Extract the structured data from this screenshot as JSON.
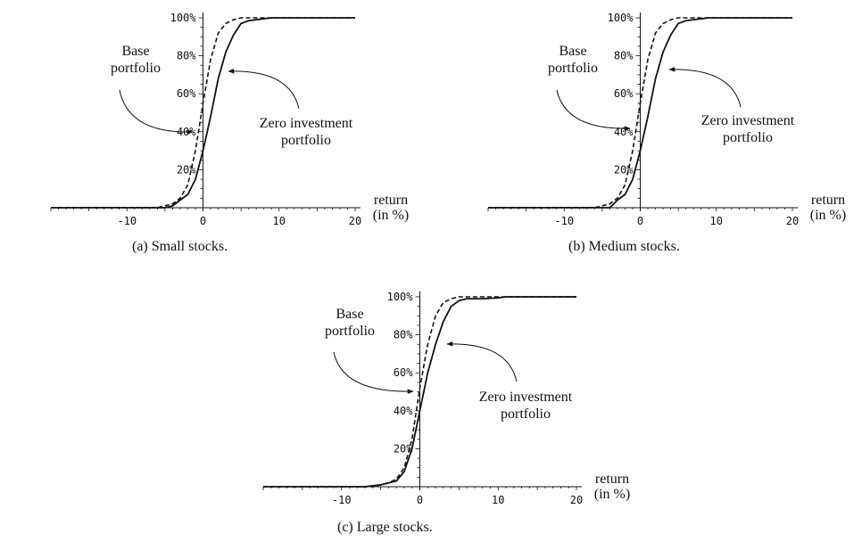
{
  "chart_data": [
    {
      "type": "line",
      "caption": "(a) Small stocks.",
      "xlabel": [
        "return",
        "(in %)"
      ],
      "ylabel": "",
      "xlim": [
        -20,
        20
      ],
      "ylim": [
        0,
        1
      ],
      "x_ticks": [
        -10,
        0,
        10,
        20
      ],
      "x_tick_labels": [
        "-10",
        "0",
        "10",
        "20"
      ],
      "y_ticks": [
        0.2,
        0.4,
        0.6,
        0.8,
        1.0
      ],
      "y_tick_labels": [
        "20%",
        "40%",
        "60%",
        "80%",
        "100%"
      ],
      "grid": false,
      "annotations": [
        {
          "text": [
            "Base",
            "portfolio"
          ],
          "series": "Base portfolio"
        },
        {
          "text": [
            "Zero investment",
            "portfolio"
          ],
          "series": "Zero investment portfolio"
        }
      ],
      "series": [
        {
          "name": "Base portfolio",
          "style": "dashed",
          "x": [
            -20,
            -6,
            -5,
            -4,
            -3,
            -2,
            -1,
            0,
            1,
            2,
            3,
            4,
            5,
            6,
            8,
            10,
            20
          ],
          "y": [
            0,
            0,
            0.01,
            0.02,
            0.05,
            0.12,
            0.3,
            0.55,
            0.78,
            0.92,
            0.97,
            0.99,
            1.0,
            1.0,
            1.0,
            1.0,
            1.0
          ]
        },
        {
          "name": "Zero investment portfolio",
          "style": "solid",
          "x": [
            -20,
            -5,
            -4,
            -3,
            -2,
            -1,
            0,
            1,
            2,
            3,
            4,
            5,
            6,
            7,
            8,
            9,
            10,
            20
          ],
          "y": [
            0,
            0,
            0.01,
            0.04,
            0.07,
            0.15,
            0.3,
            0.48,
            0.68,
            0.82,
            0.91,
            0.97,
            0.985,
            0.99,
            0.995,
            1.0,
            1.0,
            1.0
          ]
        }
      ]
    },
    {
      "type": "line",
      "caption": "(b) Medium stocks.",
      "xlabel": [
        "return",
        "(in %)"
      ],
      "ylabel": "",
      "xlim": [
        -20,
        20
      ],
      "ylim": [
        0,
        1
      ],
      "x_ticks": [
        -10,
        0,
        10,
        20
      ],
      "x_tick_labels": [
        "-10",
        "0",
        "10",
        "20"
      ],
      "y_ticks": [
        0.2,
        0.4,
        0.6,
        0.8,
        1.0
      ],
      "y_tick_labels": [
        "20%",
        "40%",
        "60%",
        "80%",
        "100%"
      ],
      "grid": false,
      "annotations": [
        {
          "text": [
            "Base",
            "portfolio"
          ],
          "series": "Base portfolio"
        },
        {
          "text": [
            "Zero investment",
            "portfolio"
          ],
          "series": "Zero investment portfolio"
        }
      ],
      "series": [
        {
          "name": "Base portfolio",
          "style": "dashed",
          "x": [
            -20,
            -6,
            -5,
            -4,
            -3,
            -2,
            -1,
            0,
            1,
            2,
            3,
            4,
            5,
            6,
            8,
            10,
            20
          ],
          "y": [
            0,
            0,
            0.01,
            0.02,
            0.05,
            0.12,
            0.3,
            0.55,
            0.78,
            0.92,
            0.97,
            0.99,
            1.0,
            1.0,
            1.0,
            1.0,
            1.0
          ]
        },
        {
          "name": "Zero investment portfolio",
          "style": "solid",
          "x": [
            -20,
            -4,
            -3,
            -2,
            -1,
            0,
            1,
            2,
            3,
            4,
            5,
            6,
            7,
            8,
            9,
            10,
            20
          ],
          "y": [
            0,
            0,
            0.04,
            0.07,
            0.15,
            0.3,
            0.48,
            0.68,
            0.82,
            0.91,
            0.97,
            0.985,
            0.99,
            0.995,
            1.0,
            1.0,
            1.0
          ]
        }
      ]
    },
    {
      "type": "line",
      "caption": "(c) Large stocks.",
      "xlabel": [
        "return",
        "(in %)"
      ],
      "ylabel": "",
      "xlim": [
        -20,
        20
      ],
      "ylim": [
        0,
        1
      ],
      "x_ticks": [
        -10,
        0,
        10,
        20
      ],
      "x_tick_labels": [
        "-10",
        "0",
        "10",
        "20"
      ],
      "y_ticks": [
        0.2,
        0.4,
        0.6,
        0.8,
        1.0
      ],
      "y_tick_labels": [
        "20%",
        "40%",
        "60%",
        "80%",
        "100%"
      ],
      "grid": false,
      "annotations": [
        {
          "text": [
            "Base",
            "portfolio"
          ],
          "series": "Base portfolio"
        },
        {
          "text": [
            "Zero investment",
            "portfolio"
          ],
          "series": "Zero investment portfolio"
        }
      ],
      "series": [
        {
          "name": "Base portfolio",
          "style": "dashed",
          "x": [
            -20,
            -6,
            -5,
            -4,
            -3,
            -2,
            -1,
            0,
            1,
            2,
            3,
            4,
            5,
            6,
            8,
            10,
            20
          ],
          "y": [
            0,
            0,
            0.01,
            0.02,
            0.04,
            0.1,
            0.25,
            0.52,
            0.75,
            0.9,
            0.97,
            0.99,
            1.0,
            1.0,
            1.0,
            1.0,
            1.0
          ]
        },
        {
          "name": "Zero investment portfolio",
          "style": "solid",
          "x": [
            -20,
            -7,
            -6,
            -5,
            -4,
            -3,
            -2,
            -1,
            0,
            1,
            2,
            3,
            4,
            5,
            6,
            8,
            10,
            11,
            20
          ],
          "y": [
            0,
            0,
            0.005,
            0.01,
            0.02,
            0.03,
            0.08,
            0.2,
            0.4,
            0.6,
            0.75,
            0.87,
            0.95,
            0.98,
            0.99,
            0.99,
            0.995,
            1.0,
            1.0
          ]
        }
      ]
    }
  ]
}
